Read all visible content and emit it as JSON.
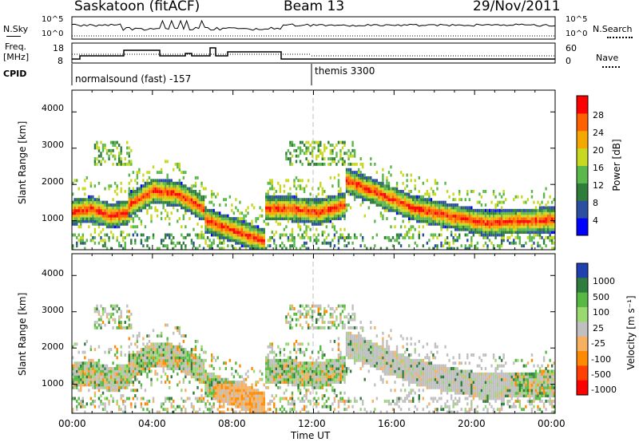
{
  "header": {
    "station": "Saskatoon (fitACF)",
    "beam": "Beam 13",
    "date": "29/Nov/2011"
  },
  "top_panels": {
    "nsky_label": "N.Sky",
    "nsky_ticks": [
      "10^5",
      "10^0"
    ],
    "nsearch_label": "N.Search",
    "nsearch_ticks": [
      "10^5",
      "10^0"
    ],
    "freq_label_1": "Freq.",
    "freq_label_2": "[MHz]",
    "freq_ticks": [
      "18",
      "8"
    ],
    "nave_label": "Nave",
    "nave_ticks": [
      "60",
      "0"
    ],
    "cpid_label": "CPID",
    "cpid_segments": [
      "normalsound (fast) -157",
      "themis 3300"
    ]
  },
  "chart_data": [
    {
      "type": "heatmap",
      "panel": "power",
      "ylabel": "Slant Range [km]",
      "yticks": [
        "4000",
        "3000",
        "2000",
        "1000"
      ],
      "ylim": [
        200,
        4600
      ],
      "colorbar_label": "Power [dB]",
      "colorbar_ticks": [
        "28",
        "24",
        "20",
        "16",
        "12",
        "8",
        "4"
      ],
      "colorbar_range": [
        0,
        32
      ],
      "colors": [
        "#0000ff",
        "#2a4fa0",
        "#2e7d3a",
        "#5bb84a",
        "#c8d820",
        "#f5a800",
        "#ff6000",
        "#ff0000"
      ],
      "ridges": [
        {
          "t0": 0.0,
          "t1": 2.8,
          "r": [
            1200,
            1300,
            1100,
            1200
          ]
        },
        {
          "t0": 2.8,
          "t1": 6.5,
          "r": [
            1400,
            1800,
            1700,
            1300
          ]
        },
        {
          "t0": 6.5,
          "t1": 9.5,
          "r": [
            1000,
            800,
            600,
            400
          ]
        },
        {
          "t0": 9.5,
          "t1": 13.5,
          "r": [
            1300,
            1300,
            1200,
            1400
          ]
        },
        {
          "t0": 13.5,
          "t1": 24.0,
          "r": [
            2100,
            1300,
            900,
            1000
          ]
        }
      ]
    },
    {
      "type": "heatmap",
      "panel": "velocity",
      "ylabel": "Slant Range [km]",
      "yticks": [
        "4000",
        "3000",
        "2000",
        "1000"
      ],
      "ylim": [
        200,
        4600
      ],
      "colorbar_label": "Velocity [m s⁻¹]",
      "colorbar_ticks": [
        "1000",
        "500",
        "100",
        "25",
        "-25",
        "-100",
        "-500",
        "-1000"
      ],
      "colors": [
        "#2040b0",
        "#2f7d3c",
        "#58b844",
        "#9ad870",
        "#c0c0c0",
        "#f5b060",
        "#ff8a00",
        "#ff4000",
        "#ff0000"
      ],
      "xlabel": "Time UT",
      "xticks": [
        "00:00",
        "04:00",
        "08:00",
        "12:00",
        "16:00",
        "20:00",
        "00:00"
      ],
      "xlim_hours": [
        0,
        24
      ]
    }
  ]
}
